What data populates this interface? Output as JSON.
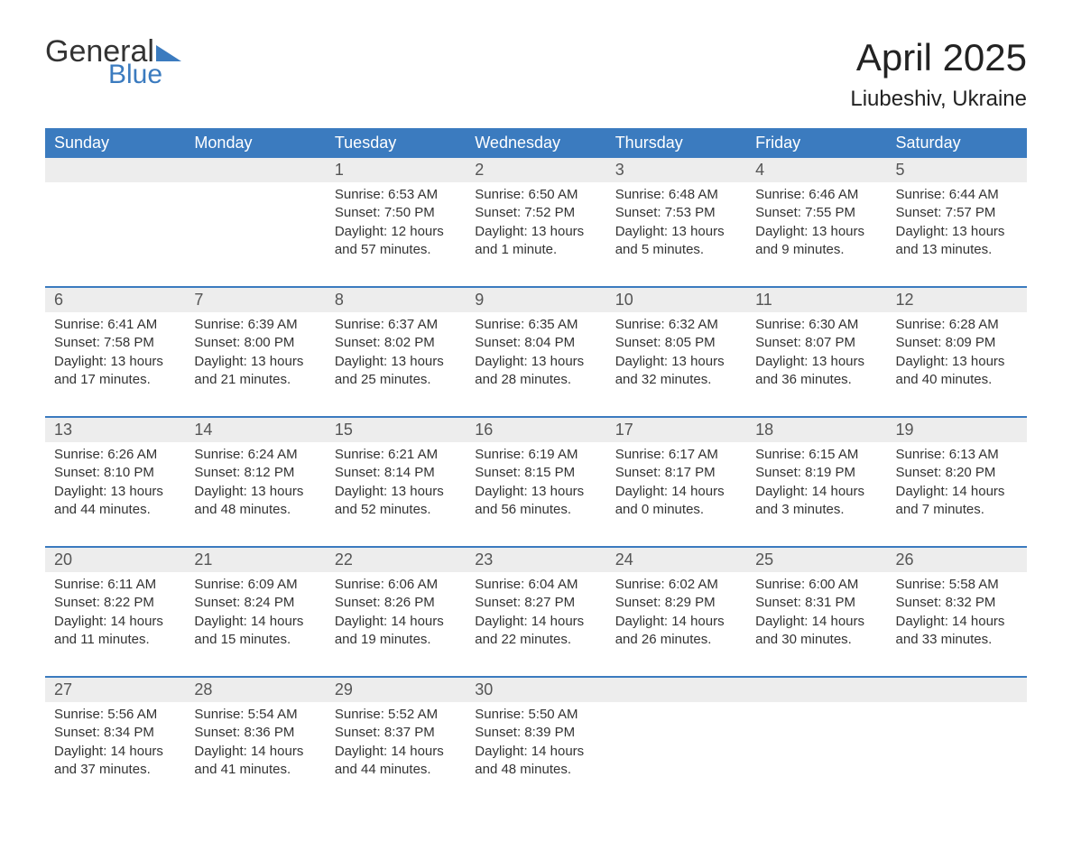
{
  "brand": {
    "word1": "General",
    "word2": "Blue",
    "triangle_color": "#3b7bbf",
    "text_color": "#333333",
    "blue_color": "#3b7bbf"
  },
  "title": "April 2025",
  "location": "Liubeshiv, Ukraine",
  "colors": {
    "header_bg": "#3b7bbf",
    "header_text": "#ffffff",
    "daynum_bg": "#ededed",
    "row_divider": "#3b7bbf",
    "body_text": "#333333",
    "page_bg": "#ffffff"
  },
  "day_headers": [
    "Sunday",
    "Monday",
    "Tuesday",
    "Wednesday",
    "Thursday",
    "Friday",
    "Saturday"
  ],
  "weeks": [
    [
      {
        "n": "",
        "sunrise": "",
        "sunset": "",
        "dl1": "",
        "dl2": ""
      },
      {
        "n": "",
        "sunrise": "",
        "sunset": "",
        "dl1": "",
        "dl2": ""
      },
      {
        "n": "1",
        "sunrise": "Sunrise: 6:53 AM",
        "sunset": "Sunset: 7:50 PM",
        "dl1": "Daylight: 12 hours",
        "dl2": "and 57 minutes."
      },
      {
        "n": "2",
        "sunrise": "Sunrise: 6:50 AM",
        "sunset": "Sunset: 7:52 PM",
        "dl1": "Daylight: 13 hours",
        "dl2": "and 1 minute."
      },
      {
        "n": "3",
        "sunrise": "Sunrise: 6:48 AM",
        "sunset": "Sunset: 7:53 PM",
        "dl1": "Daylight: 13 hours",
        "dl2": "and 5 minutes."
      },
      {
        "n": "4",
        "sunrise": "Sunrise: 6:46 AM",
        "sunset": "Sunset: 7:55 PM",
        "dl1": "Daylight: 13 hours",
        "dl2": "and 9 minutes."
      },
      {
        "n": "5",
        "sunrise": "Sunrise: 6:44 AM",
        "sunset": "Sunset: 7:57 PM",
        "dl1": "Daylight: 13 hours",
        "dl2": "and 13 minutes."
      }
    ],
    [
      {
        "n": "6",
        "sunrise": "Sunrise: 6:41 AM",
        "sunset": "Sunset: 7:58 PM",
        "dl1": "Daylight: 13 hours",
        "dl2": "and 17 minutes."
      },
      {
        "n": "7",
        "sunrise": "Sunrise: 6:39 AM",
        "sunset": "Sunset: 8:00 PM",
        "dl1": "Daylight: 13 hours",
        "dl2": "and 21 minutes."
      },
      {
        "n": "8",
        "sunrise": "Sunrise: 6:37 AM",
        "sunset": "Sunset: 8:02 PM",
        "dl1": "Daylight: 13 hours",
        "dl2": "and 25 minutes."
      },
      {
        "n": "9",
        "sunrise": "Sunrise: 6:35 AM",
        "sunset": "Sunset: 8:04 PM",
        "dl1": "Daylight: 13 hours",
        "dl2": "and 28 minutes."
      },
      {
        "n": "10",
        "sunrise": "Sunrise: 6:32 AM",
        "sunset": "Sunset: 8:05 PM",
        "dl1": "Daylight: 13 hours",
        "dl2": "and 32 minutes."
      },
      {
        "n": "11",
        "sunrise": "Sunrise: 6:30 AM",
        "sunset": "Sunset: 8:07 PM",
        "dl1": "Daylight: 13 hours",
        "dl2": "and 36 minutes."
      },
      {
        "n": "12",
        "sunrise": "Sunrise: 6:28 AM",
        "sunset": "Sunset: 8:09 PM",
        "dl1": "Daylight: 13 hours",
        "dl2": "and 40 minutes."
      }
    ],
    [
      {
        "n": "13",
        "sunrise": "Sunrise: 6:26 AM",
        "sunset": "Sunset: 8:10 PM",
        "dl1": "Daylight: 13 hours",
        "dl2": "and 44 minutes."
      },
      {
        "n": "14",
        "sunrise": "Sunrise: 6:24 AM",
        "sunset": "Sunset: 8:12 PM",
        "dl1": "Daylight: 13 hours",
        "dl2": "and 48 minutes."
      },
      {
        "n": "15",
        "sunrise": "Sunrise: 6:21 AM",
        "sunset": "Sunset: 8:14 PM",
        "dl1": "Daylight: 13 hours",
        "dl2": "and 52 minutes."
      },
      {
        "n": "16",
        "sunrise": "Sunrise: 6:19 AM",
        "sunset": "Sunset: 8:15 PM",
        "dl1": "Daylight: 13 hours",
        "dl2": "and 56 minutes."
      },
      {
        "n": "17",
        "sunrise": "Sunrise: 6:17 AM",
        "sunset": "Sunset: 8:17 PM",
        "dl1": "Daylight: 14 hours",
        "dl2": "and 0 minutes."
      },
      {
        "n": "18",
        "sunrise": "Sunrise: 6:15 AM",
        "sunset": "Sunset: 8:19 PM",
        "dl1": "Daylight: 14 hours",
        "dl2": "and 3 minutes."
      },
      {
        "n": "19",
        "sunrise": "Sunrise: 6:13 AM",
        "sunset": "Sunset: 8:20 PM",
        "dl1": "Daylight: 14 hours",
        "dl2": "and 7 minutes."
      }
    ],
    [
      {
        "n": "20",
        "sunrise": "Sunrise: 6:11 AM",
        "sunset": "Sunset: 8:22 PM",
        "dl1": "Daylight: 14 hours",
        "dl2": "and 11 minutes."
      },
      {
        "n": "21",
        "sunrise": "Sunrise: 6:09 AM",
        "sunset": "Sunset: 8:24 PM",
        "dl1": "Daylight: 14 hours",
        "dl2": "and 15 minutes."
      },
      {
        "n": "22",
        "sunrise": "Sunrise: 6:06 AM",
        "sunset": "Sunset: 8:26 PM",
        "dl1": "Daylight: 14 hours",
        "dl2": "and 19 minutes."
      },
      {
        "n": "23",
        "sunrise": "Sunrise: 6:04 AM",
        "sunset": "Sunset: 8:27 PM",
        "dl1": "Daylight: 14 hours",
        "dl2": "and 22 minutes."
      },
      {
        "n": "24",
        "sunrise": "Sunrise: 6:02 AM",
        "sunset": "Sunset: 8:29 PM",
        "dl1": "Daylight: 14 hours",
        "dl2": "and 26 minutes."
      },
      {
        "n": "25",
        "sunrise": "Sunrise: 6:00 AM",
        "sunset": "Sunset: 8:31 PM",
        "dl1": "Daylight: 14 hours",
        "dl2": "and 30 minutes."
      },
      {
        "n": "26",
        "sunrise": "Sunrise: 5:58 AM",
        "sunset": "Sunset: 8:32 PM",
        "dl1": "Daylight: 14 hours",
        "dl2": "and 33 minutes."
      }
    ],
    [
      {
        "n": "27",
        "sunrise": "Sunrise: 5:56 AM",
        "sunset": "Sunset: 8:34 PM",
        "dl1": "Daylight: 14 hours",
        "dl2": "and 37 minutes."
      },
      {
        "n": "28",
        "sunrise": "Sunrise: 5:54 AM",
        "sunset": "Sunset: 8:36 PM",
        "dl1": "Daylight: 14 hours",
        "dl2": "and 41 minutes."
      },
      {
        "n": "29",
        "sunrise": "Sunrise: 5:52 AM",
        "sunset": "Sunset: 8:37 PM",
        "dl1": "Daylight: 14 hours",
        "dl2": "and 44 minutes."
      },
      {
        "n": "30",
        "sunrise": "Sunrise: 5:50 AM",
        "sunset": "Sunset: 8:39 PM",
        "dl1": "Daylight: 14 hours",
        "dl2": "and 48 minutes."
      },
      {
        "n": "",
        "sunrise": "",
        "sunset": "",
        "dl1": "",
        "dl2": ""
      },
      {
        "n": "",
        "sunrise": "",
        "sunset": "",
        "dl1": "",
        "dl2": ""
      },
      {
        "n": "",
        "sunrise": "",
        "sunset": "",
        "dl1": "",
        "dl2": ""
      }
    ]
  ]
}
